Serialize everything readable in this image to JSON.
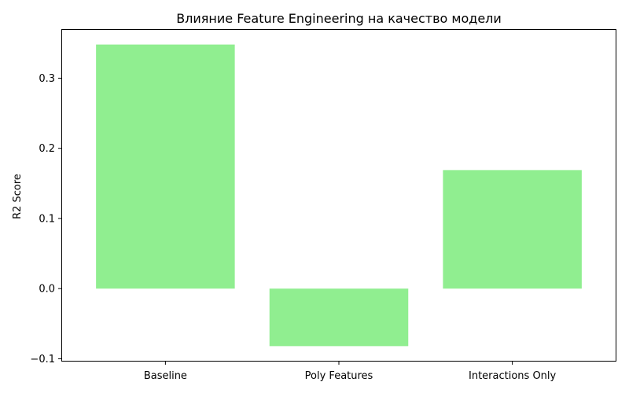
{
  "chart_data": {
    "type": "bar",
    "title": "Влияние Feature Engineering на качество модели",
    "xlabel": "",
    "ylabel": "R2 Score",
    "categories": [
      "Baseline",
      "Poly Features",
      "Interactions Only"
    ],
    "values": [
      0.348,
      -0.082,
      0.169
    ],
    "ylim": [
      -0.104,
      0.37
    ],
    "yticks": [
      -0.1,
      0.0,
      0.1,
      0.2,
      0.3
    ],
    "ytick_labels": [
      "−0.1",
      "0.0",
      "0.1",
      "0.2",
      "0.3"
    ],
    "bar_color": "#90ee90",
    "grid": false,
    "legend": "none"
  }
}
